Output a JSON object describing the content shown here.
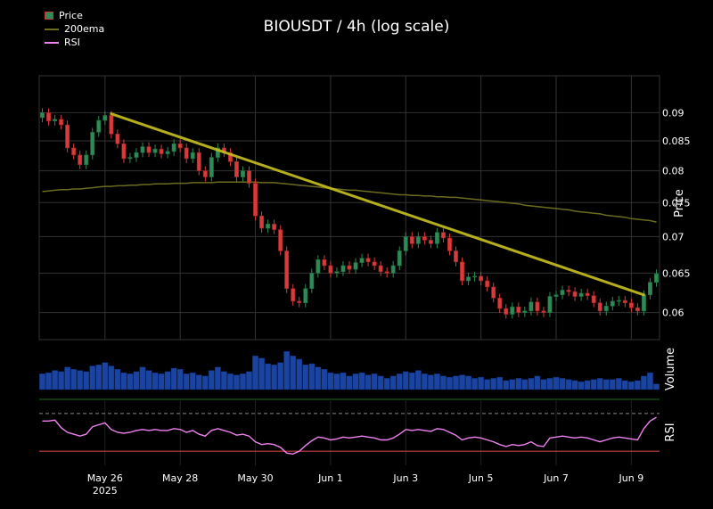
{
  "chart_data": {
    "type": "candlestick",
    "title": "BIOUSDT / 4h (log scale)",
    "legend": [
      {
        "label": "Price",
        "color": "#2e8b57"
      },
      {
        "label": "200ema",
        "color": "#6b6b1e"
      },
      {
        "label": "RSI",
        "color": "#ee82ee"
      }
    ],
    "price_axis": {
      "label": "Price",
      "scale": "log",
      "ticks": [
        0.06,
        0.065,
        0.07,
        0.075,
        0.08,
        0.085,
        0.09
      ],
      "tick_labels": [
        "0.06",
        "0.065",
        "0.07",
        "0.075",
        "0.08",
        "0.085",
        "0.09"
      ],
      "ylim": [
        0.0568,
        0.097
      ]
    },
    "volume_axis": {
      "label": "Volume"
    },
    "rsi_axis": {
      "label": "RSI",
      "levels": [
        70,
        30
      ]
    },
    "x_ticks": [
      "May 26\n2025",
      "May 28",
      "May 30",
      "Jun 1",
      "Jun 3",
      "Jun 5",
      "Jun 7",
      "Jun 9"
    ],
    "close": [
      0.09,
      0.0885,
      0.0888,
      0.0878,
      0.0838,
      0.0826,
      0.081,
      0.0826,
      0.0865,
      0.0886,
      0.0895,
      0.0862,
      0.0845,
      0.082,
      0.0822,
      0.083,
      0.084,
      0.083,
      0.0836,
      0.0828,
      0.0832,
      0.0845,
      0.0838,
      0.082,
      0.083,
      0.08,
      0.079,
      0.0822,
      0.0838,
      0.083,
      0.0815,
      0.079,
      0.08,
      0.078,
      0.073,
      0.0712,
      0.0718,
      0.071,
      0.068,
      0.063,
      0.0614,
      0.0612,
      0.063,
      0.065,
      0.0668,
      0.066,
      0.065,
      0.0652,
      0.066,
      0.0655,
      0.0664,
      0.067,
      0.0665,
      0.066,
      0.0652,
      0.065,
      0.066,
      0.068,
      0.07,
      0.069,
      0.07,
      0.0695,
      0.069,
      0.0706,
      0.0698,
      0.068,
      0.0665,
      0.064,
      0.0645,
      0.0646,
      0.064,
      0.0632,
      0.0618,
      0.0605,
      0.0598,
      0.0607,
      0.06,
      0.0602,
      0.0613,
      0.0602,
      0.06,
      0.062,
      0.0622,
      0.0628,
      0.0626,
      0.062,
      0.0624,
      0.0621,
      0.0612,
      0.0602,
      0.0608,
      0.0614,
      0.0615,
      0.0612,
      0.0606,
      0.0602,
      0.0622,
      0.0638,
      0.0649
    ],
    "ema200": [
      0.0767,
      0.0768,
      0.0769,
      0.077,
      0.077,
      0.0771,
      0.0771,
      0.0772,
      0.0773,
      0.0774,
      0.0775,
      0.0775,
      0.0776,
      0.0776,
      0.0777,
      0.0777,
      0.0778,
      0.0778,
      0.0779,
      0.0779,
      0.0779,
      0.078,
      0.078,
      0.078,
      0.0781,
      0.0781,
      0.0781,
      0.0781,
      0.0782,
      0.0782,
      0.0782,
      0.0782,
      0.0782,
      0.0782,
      0.0782,
      0.0781,
      0.0781,
      0.0781,
      0.078,
      0.0779,
      0.0778,
      0.0777,
      0.0776,
      0.0775,
      0.0774,
      0.0773,
      0.0772,
      0.0771,
      0.077,
      0.0769,
      0.0769,
      0.0768,
      0.0767,
      0.0766,
      0.0765,
      0.0764,
      0.0763,
      0.0762,
      0.0762,
      0.0761,
      0.0761,
      0.076,
      0.076,
      0.0759,
      0.0759,
      0.0758,
      0.0758,
      0.0757,
      0.0756,
      0.0755,
      0.0754,
      0.0753,
      0.0752,
      0.0751,
      0.075,
      0.0749,
      0.0748,
      0.0746,
      0.0745,
      0.0744,
      0.0743,
      0.0742,
      0.0741,
      0.074,
      0.0739,
      0.0737,
      0.0736,
      0.0735,
      0.0734,
      0.0733,
      0.0731,
      0.073,
      0.0729,
      0.0728,
      0.0726,
      0.0725,
      0.0724,
      0.0723,
      0.0721
    ],
    "volume": [
      14,
      15,
      17,
      16,
      20,
      18,
      17,
      16,
      21,
      22,
      24,
      21,
      18,
      15,
      14,
      16,
      20,
      17,
      15,
      14,
      16,
      19,
      18,
      14,
      15,
      13,
      12,
      17,
      20,
      16,
      14,
      13,
      14,
      16,
      30,
      28,
      23,
      22,
      24,
      34,
      30,
      27,
      22,
      23,
      20,
      18,
      15,
      14,
      15,
      12,
      14,
      15,
      13,
      14,
      12,
      10,
      12,
      14,
      16,
      15,
      17,
      14,
      13,
      14,
      12,
      11,
      12,
      13,
      12,
      10,
      11,
      9,
      10,
      11,
      8,
      9,
      10,
      9,
      10,
      12,
      9,
      10,
      11,
      10,
      9,
      8,
      7,
      8,
      9,
      10,
      9,
      9,
      10,
      8,
      7,
      8,
      12,
      15,
      5
    ],
    "rsi": [
      62,
      62,
      63,
      55,
      50,
      48,
      46,
      48,
      56,
      58,
      60,
      53,
      50,
      49,
      50,
      52,
      53,
      52,
      53,
      52,
      52,
      54,
      53,
      50,
      52,
      48,
      46,
      52,
      54,
      52,
      50,
      47,
      48,
      46,
      40,
      37,
      38,
      37,
      34,
      28,
      27,
      30,
      36,
      41,
      45,
      44,
      42,
      43,
      45,
      44,
      45,
      46,
      45,
      44,
      42,
      42,
      44,
      48,
      53,
      52,
      53,
      52,
      51,
      54,
      53,
      50,
      47,
      42,
      44,
      45,
      44,
      42,
      40,
      37,
      35,
      37,
      36,
      37,
      40,
      36,
      35,
      44,
      45,
      46,
      45,
      44,
      45,
      44,
      42,
      40,
      42,
      44,
      45,
      44,
      43,
      42,
      54,
      62,
      66
    ],
    "trendline": {
      "start_index": 11,
      "start_value": 0.0898,
      "end_index": 96,
      "end_value": 0.0622
    }
  }
}
